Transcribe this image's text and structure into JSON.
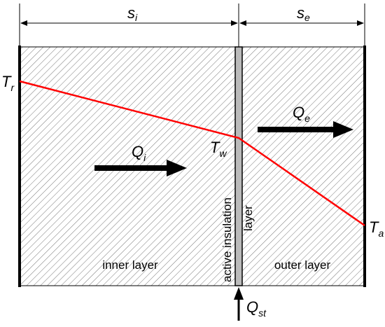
{
  "dimensions": [
    {
      "symbol": "s",
      "subscript": "i"
    },
    {
      "symbol": "s",
      "subscript": "e"
    }
  ],
  "temperatures": [
    {
      "symbol": "T",
      "subscript": "r"
    },
    {
      "symbol": "T",
      "subscript": "w"
    },
    {
      "symbol": "T",
      "subscript": "a"
    }
  ],
  "heat_flows": [
    {
      "symbol": "Q",
      "subscript": "i"
    },
    {
      "symbol": "Q",
      "subscript": "e"
    },
    {
      "symbol": "Q",
      "subscript": "st"
    }
  ],
  "regions": {
    "inner": "inner layer",
    "outer": "outer layer",
    "insulation": "active insulation",
    "insulation_2": "layer"
  }
}
